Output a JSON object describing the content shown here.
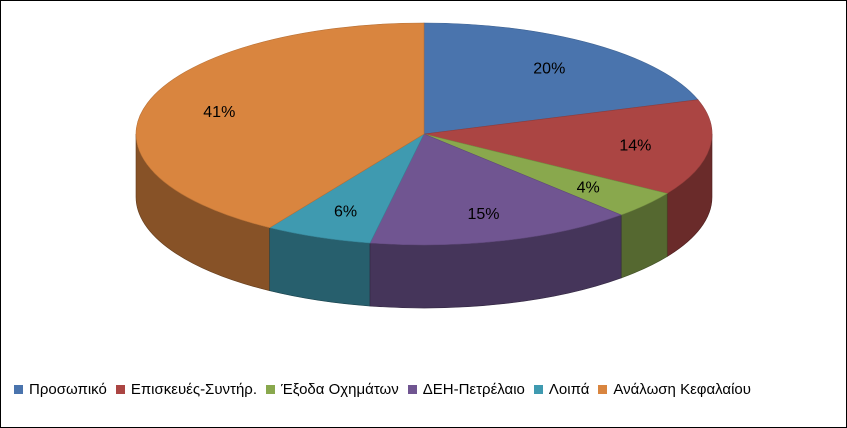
{
  "chart_data": {
    "type": "pie",
    "three_d": true,
    "categories": [
      "Προσωπικό",
      "Επισκευές-Συντήρ.",
      "Έξοδα Οχημάτων",
      "ΔΕΗ-Πετρέλαιο",
      "Λοιπά",
      "Ανάλωση Κεφαλαίου"
    ],
    "values": [
      20,
      14,
      4,
      15,
      6,
      41
    ],
    "labels": [
      "20%",
      "14%",
      "4%",
      "15%",
      "6%",
      "41%"
    ],
    "colors": [
      "#4a74ad",
      "#ab4543",
      "#89a84d",
      "#705591",
      "#3f9ab0",
      "#d9853f"
    ],
    "legend_position": "bottom",
    "title": ""
  }
}
